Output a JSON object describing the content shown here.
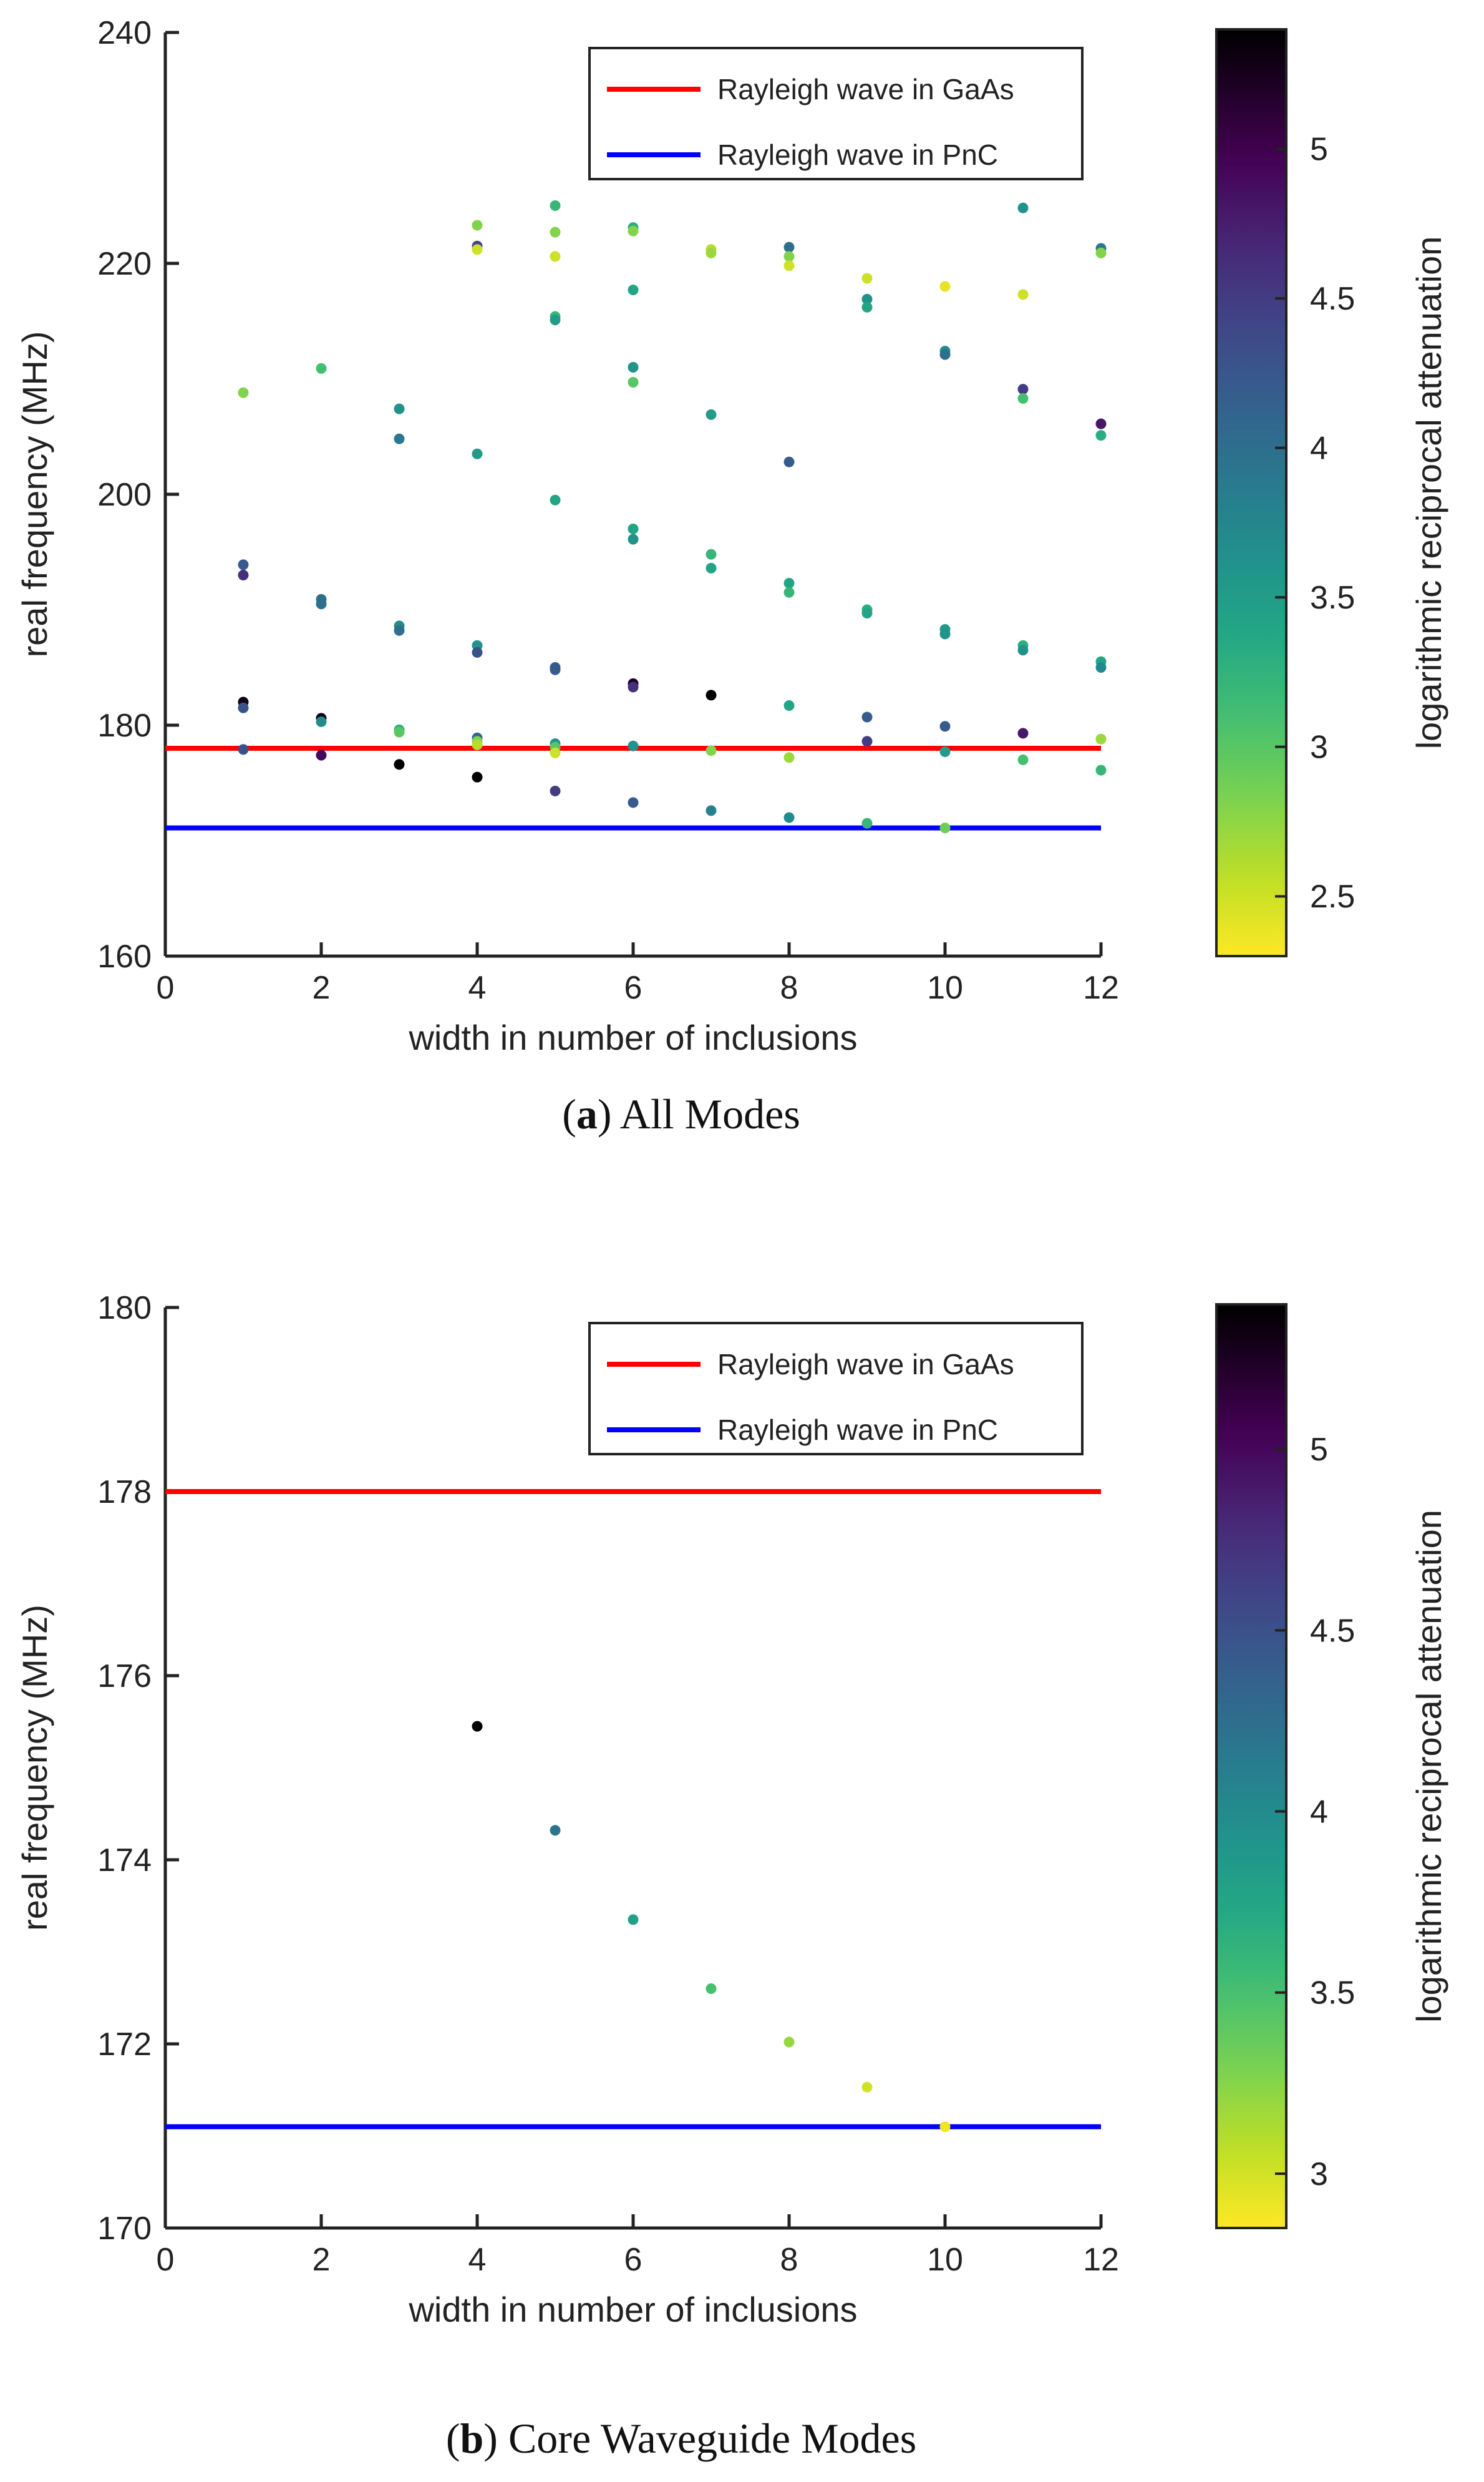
{
  "chart_data": [
    {
      "type": "scatter",
      "caption_letter": "a",
      "caption_text": "All Modes",
      "xlabel": "width in number of inclusions",
      "ylabel": "real frequency (MHz)",
      "colorbar_label": "logarithmic reciprocal attenuation",
      "xlim": [
        0,
        12
      ],
      "ylim": [
        160,
        240
      ],
      "xticks": [
        "0",
        "2",
        "4",
        "6",
        "8",
        "10",
        "12"
      ],
      "yticks": [
        "160",
        "180",
        "200",
        "220",
        "240"
      ],
      "xtick_values": [
        0,
        2,
        4,
        6,
        8,
        10,
        12
      ],
      "ytick_values": [
        160,
        180,
        200,
        220,
        240
      ],
      "clim": [
        2.3,
        5.4
      ],
      "cticks": [
        "2.5",
        "3",
        "3.5",
        "4",
        "4.5",
        "5"
      ],
      "ctick_values": [
        2.5,
        3,
        3.5,
        4,
        4.5,
        5
      ],
      "grid": false,
      "legend_position": "top-right",
      "legend": [
        {
          "name": "Rayleigh wave in GaAs",
          "color": "#ff0000"
        },
        {
          "name": "Rayleigh wave in PnC",
          "color": "#0000ff"
        }
      ],
      "hlines": [
        {
          "name": "Rayleigh wave in GaAs",
          "y": 178.0,
          "color": "#ff0000"
        },
        {
          "name": "Rayleigh wave in PnC",
          "y": 171.1,
          "color": "#0000ff"
        }
      ],
      "points": [
        [
          1,
          208.8,
          2.8
        ],
        [
          1,
          193.9,
          4.2
        ],
        [
          1,
          193.0,
          4.6
        ],
        [
          1,
          182.0,
          5.3
        ],
        [
          1,
          181.5,
          4.3
        ],
        [
          1,
          177.9,
          4.3
        ],
        [
          2,
          210.9,
          3.1
        ],
        [
          2,
          190.9,
          4.0
        ],
        [
          2,
          190.5,
          4.0
        ],
        [
          2,
          180.6,
          5.3
        ],
        [
          2,
          180.3,
          3.7
        ],
        [
          2,
          177.4,
          4.9
        ],
        [
          3,
          207.4,
          3.6
        ],
        [
          3,
          204.8,
          3.9
        ],
        [
          3,
          188.6,
          3.7
        ],
        [
          3,
          188.2,
          4.0
        ],
        [
          3,
          179.6,
          3.3
        ],
        [
          3,
          179.4,
          3.0
        ],
        [
          3,
          176.6,
          5.4
        ],
        [
          4,
          223.3,
          2.8
        ],
        [
          4,
          221.5,
          4.4
        ],
        [
          4,
          221.2,
          2.5
        ],
        [
          4,
          203.5,
          3.5
        ],
        [
          4,
          186.9,
          3.6
        ],
        [
          4,
          186.3,
          4.3
        ],
        [
          4,
          178.9,
          4.1
        ],
        [
          4,
          178.6,
          2.8
        ],
        [
          4,
          178.3,
          2.6
        ],
        [
          4,
          175.5,
          5.4
        ],
        [
          5,
          225.0,
          3.2
        ],
        [
          5,
          222.7,
          2.8
        ],
        [
          5,
          220.6,
          2.5
        ],
        [
          5,
          215.4,
          3.2
        ],
        [
          5,
          215.1,
          3.5
        ],
        [
          5,
          199.5,
          3.4
        ],
        [
          5,
          185.0,
          4.2
        ],
        [
          5,
          184.8,
          4.2
        ],
        [
          5,
          178.4,
          3.6
        ],
        [
          5,
          178.1,
          3.0
        ],
        [
          5,
          177.6,
          2.5
        ],
        [
          5,
          174.3,
          4.5
        ],
        [
          6,
          223.1,
          3.3
        ],
        [
          6,
          222.8,
          2.8
        ],
        [
          6,
          217.7,
          3.4
        ],
        [
          6,
          211.0,
          3.6
        ],
        [
          6,
          209.7,
          3.0
        ],
        [
          6,
          197.0,
          3.4
        ],
        [
          6,
          196.1,
          3.6
        ],
        [
          6,
          183.6,
          5.2
        ],
        [
          6,
          183.3,
          4.6
        ],
        [
          6,
          178.2,
          3.6
        ],
        [
          6,
          173.3,
          4.2
        ],
        [
          7,
          221.2,
          2.6
        ],
        [
          7,
          220.9,
          2.7
        ],
        [
          7,
          206.9,
          3.5
        ],
        [
          7,
          194.8,
          3.2
        ],
        [
          7,
          193.6,
          3.4
        ],
        [
          7,
          182.6,
          5.4
        ],
        [
          7,
          177.8,
          2.8
        ],
        [
          7,
          172.6,
          3.8
        ],
        [
          8,
          221.4,
          4.0
        ],
        [
          8,
          220.6,
          2.8
        ],
        [
          8,
          219.8,
          2.5
        ],
        [
          8,
          202.8,
          4.2
        ],
        [
          8,
          192.3,
          3.4
        ],
        [
          8,
          191.5,
          3.2
        ],
        [
          8,
          181.7,
          3.4
        ],
        [
          8,
          177.2,
          2.7
        ],
        [
          8,
          172.0,
          3.7
        ],
        [
          9,
          218.7,
          2.5
        ],
        [
          9,
          216.9,
          3.6
        ],
        [
          9,
          216.2,
          3.4
        ],
        [
          9,
          190.0,
          3.3
        ],
        [
          9,
          189.7,
          3.4
        ],
        [
          9,
          180.7,
          4.2
        ],
        [
          9,
          178.6,
          4.5
        ],
        [
          9,
          171.5,
          3.2
        ],
        [
          10,
          218.0,
          2.4
        ],
        [
          10,
          212.4,
          3.7
        ],
        [
          10,
          212.1,
          4.0
        ],
        [
          10,
          188.3,
          3.5
        ],
        [
          10,
          187.9,
          3.6
        ],
        [
          10,
          179.9,
          4.2
        ],
        [
          10,
          177.7,
          3.5
        ],
        [
          10,
          171.1,
          2.9
        ],
        [
          11,
          224.8,
          3.6
        ],
        [
          11,
          217.3,
          2.5
        ],
        [
          11,
          209.1,
          4.5
        ],
        [
          11,
          208.3,
          3.1
        ],
        [
          11,
          186.9,
          3.3
        ],
        [
          11,
          186.5,
          3.6
        ],
        [
          11,
          179.3,
          4.8
        ],
        [
          11,
          177.0,
          3.1
        ],
        [
          12,
          221.3,
          3.9
        ],
        [
          12,
          220.9,
          2.8
        ],
        [
          12,
          206.1,
          4.8
        ],
        [
          12,
          205.1,
          3.3
        ],
        [
          12,
          185.5,
          3.4
        ],
        [
          12,
          185.0,
          3.7
        ],
        [
          12,
          178.8,
          2.7
        ],
        [
          12,
          176.1,
          3.2
        ]
      ]
    },
    {
      "type": "scatter",
      "caption_letter": "b",
      "caption_text": "Core Waveguide Modes",
      "xlabel": "width in number of inclusions",
      "ylabel": "real frequency (MHz)",
      "colorbar_label": "logarithmic reciprocal attenuation",
      "xlim": [
        0,
        12
      ],
      "ylim": [
        170,
        180
      ],
      "xticks": [
        "0",
        "2",
        "4",
        "6",
        "8",
        "10",
        "12"
      ],
      "yticks": [
        "170",
        "172",
        "174",
        "176",
        "178",
        "180"
      ],
      "xtick_values": [
        0,
        2,
        4,
        6,
        8,
        10,
        12
      ],
      "ytick_values": [
        170,
        172,
        174,
        176,
        178,
        180
      ],
      "clim": [
        2.85,
        5.4
      ],
      "cticks": [
        "3",
        "3.5",
        "4",
        "4.5",
        "5"
      ],
      "ctick_values": [
        3,
        3.5,
        4,
        4.5,
        5
      ],
      "grid": false,
      "legend_position": "top-right",
      "legend": [
        {
          "name": "Rayleigh wave in GaAs",
          "color": "#ff0000"
        },
        {
          "name": "Rayleigh wave in PnC",
          "color": "#0000ff"
        }
      ],
      "hlines": [
        {
          "name": "Rayleigh wave in GaAs",
          "y": 178.0,
          "color": "#ff0000"
        },
        {
          "name": "Rayleigh wave in PnC",
          "y": 171.1,
          "color": "#0000ff"
        }
      ],
      "points": [
        [
          4,
          175.45,
          5.4
        ],
        [
          5,
          174.32,
          4.2
        ],
        [
          6,
          173.35,
          3.8
        ],
        [
          7,
          172.6,
          3.5
        ],
        [
          8,
          172.02,
          3.2
        ],
        [
          9,
          171.53,
          3.0
        ],
        [
          10,
          171.1,
          2.9
        ]
      ]
    }
  ]
}
